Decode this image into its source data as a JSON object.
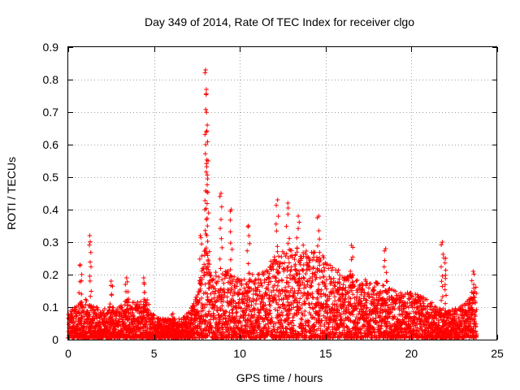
{
  "chart_data": {
    "type": "scatter",
    "title": "Day 349 of 2014, Rate Of TEC Index for receiver clgo",
    "xlabel": "GPS time / hours",
    "ylabel": "ROTI / TECUs",
    "xlim": [
      0,
      25
    ],
    "ylim": [
      0,
      0.9
    ],
    "xticks": [
      "0",
      "5",
      "10",
      "15",
      "20",
      "25"
    ],
    "yticks": [
      "0",
      "0.1",
      "0.2",
      "0.3",
      "0.4",
      "0.5",
      "0.6",
      "0.7",
      "0.8",
      "0.9"
    ],
    "grid": true,
    "marker": "+",
    "color": "#ff0000",
    "series": [
      {
        "name": "ROTI",
        "envelope_hours": [
          0,
          0.5,
          1,
          1.3,
          2,
          3,
          3.5,
          4,
          4.5,
          5,
          5.5,
          6,
          6.5,
          7,
          7.5,
          7.8,
          8.0,
          8.2,
          8.5,
          9,
          9.5,
          10,
          10.5,
          11,
          11.5,
          12,
          12.5,
          13,
          13.5,
          14,
          14.5,
          15,
          15.5,
          16,
          16.5,
          17,
          17.5,
          18,
          18.5,
          19,
          19.5,
          20,
          20.5,
          21,
          21.5,
          21.8,
          22,
          22.5,
          23,
          23.5,
          23.8
        ],
        "envelope_typical_max": [
          0.08,
          0.1,
          0.12,
          0.1,
          0.09,
          0.1,
          0.12,
          0.11,
          0.13,
          0.07,
          0.06,
          0.06,
          0.06,
          0.08,
          0.14,
          0.22,
          0.3,
          0.25,
          0.2,
          0.22,
          0.2,
          0.18,
          0.2,
          0.2,
          0.22,
          0.25,
          0.27,
          0.28,
          0.3,
          0.28,
          0.26,
          0.25,
          0.22,
          0.2,
          0.2,
          0.18,
          0.18,
          0.17,
          0.16,
          0.15,
          0.14,
          0.14,
          0.13,
          0.12,
          0.1,
          0.09,
          0.08,
          0.09,
          0.1,
          0.13,
          0.16
        ],
        "spikes": [
          {
            "x": 0.7,
            "y": 0.23
          },
          {
            "x": 1.25,
            "y": 0.32
          },
          {
            "x": 2.5,
            "y": 0.18
          },
          {
            "x": 3.4,
            "y": 0.19
          },
          {
            "x": 4.4,
            "y": 0.19
          },
          {
            "x": 6.1,
            "y": 0.08
          },
          {
            "x": 7.7,
            "y": 0.32
          },
          {
            "x": 8.0,
            "y": 0.83
          },
          {
            "x": 8.05,
            "y": 0.77
          },
          {
            "x": 8.1,
            "y": 0.66
          },
          {
            "x": 8.15,
            "y": 0.55
          },
          {
            "x": 8.9,
            "y": 0.45
          },
          {
            "x": 9.5,
            "y": 0.4
          },
          {
            "x": 10.5,
            "y": 0.35
          },
          {
            "x": 12.2,
            "y": 0.43
          },
          {
            "x": 12.8,
            "y": 0.42
          },
          {
            "x": 13.4,
            "y": 0.38
          },
          {
            "x": 14.6,
            "y": 0.38
          },
          {
            "x": 16.5,
            "y": 0.29
          },
          {
            "x": 18.5,
            "y": 0.28
          },
          {
            "x": 21.8,
            "y": 0.3
          },
          {
            "x": 22.0,
            "y": 0.25
          },
          {
            "x": 23.6,
            "y": 0.21
          }
        ]
      }
    ]
  }
}
